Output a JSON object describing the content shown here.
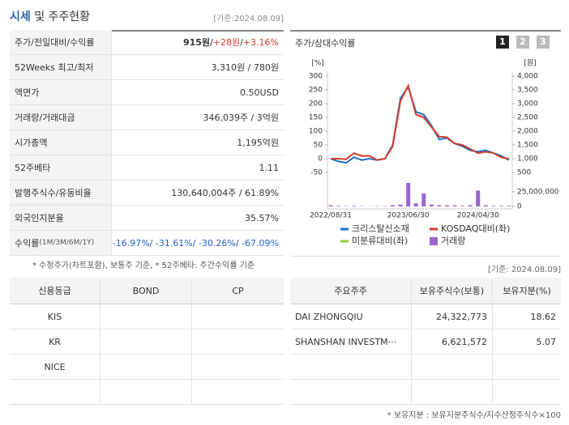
{
  "header": {
    "title_main": "시세",
    "title_rest": " 및 주주현황",
    "date": "[기준:2024.08.09]"
  },
  "summary": {
    "rows": [
      {
        "label": [
          "주가/전일대비/수익률"
        ],
        "parts": [
          "915원",
          " / ",
          "+28원",
          " / ",
          "+3.16%"
        ]
      },
      {
        "label": [
          "52Weeks 최고/최저"
        ],
        "parts": [
          "3,310원 / 780원"
        ]
      },
      {
        "label": [
          "액면가"
        ],
        "parts": [
          "0.50USD"
        ]
      },
      {
        "label": [
          "거래량/거래대금"
        ],
        "parts": [
          "346,039주 / 3억원"
        ]
      },
      {
        "label": [
          "시가총액"
        ],
        "parts": [
          "1,195억원"
        ]
      },
      {
        "label": [
          "52주베타"
        ],
        "parts": [
          "1.11"
        ]
      },
      {
        "label": [
          "발행주식수/유동비율"
        ],
        "parts": [
          "130,640,004주 / 61.89%"
        ]
      },
      {
        "label": [
          "외국인지분율"
        ],
        "parts": [
          "35.57%"
        ]
      },
      {
        "label": [
          "수익률",
          " (1M/3M/6M/1Y)"
        ],
        "parts": [
          "-16.97%/ -31.61%/ -30.26%/ -67.09%"
        ]
      }
    ],
    "note": "* 수정주가(차트포함), 보통주 기준, * 52주베타: 주간수익률 기준"
  },
  "chart_tabs": [
    "1",
    "2",
    "3"
  ],
  "chart": {
    "type": "line",
    "title": "주가/상대수익률",
    "y_unit": "[%]",
    "y2_unit": "[원]",
    "categories": [
      "2022/08/31",
      null,
      null,
      null,
      null,
      null,
      null,
      null,
      null,
      null,
      "2023/06/30",
      null,
      null,
      null,
      null,
      null,
      null,
      null,
      null,
      "2024/04/30",
      null,
      null,
      null,
      null
    ],
    "ylim": [
      -50,
      300
    ],
    "yticks": [
      300,
      250,
      200,
      150,
      100,
      50,
      0,
      -50
    ],
    "y2lim": [
      500,
      4000
    ],
    "y2ticks": [
      {
        "value": 4000,
        "label": "4,000"
      },
      {
        "value": 3500,
        "label": "3,500"
      },
      {
        "value": 3000,
        "label": "3,000"
      },
      {
        "value": 2500,
        "label": "2,500"
      },
      {
        "value": 2000,
        "label": "2,000"
      },
      {
        "value": 1500,
        "label": "1,500"
      },
      {
        "value": 1000,
        "label": "1,000"
      },
      500
    ],
    "y3lim": [
      0,
      40000000
    ],
    "y3ticks": [
      {
        "value": 25000000,
        "label": "25,000,000"
      },
      0
    ],
    "series": [
      {
        "name": "크리스탈신소재",
        "color": "#1f6fc4",
        "values": [
          0,
          -10,
          -15,
          5,
          -5,
          0,
          -5,
          0,
          50,
          220,
          260,
          170,
          160,
          120,
          70,
          75,
          55,
          45,
          30,
          25,
          30,
          20,
          10,
          -5
        ]
      },
      {
        "name": "KOSDAQ대비(좌)",
        "color": "#d03c2a",
        "values": [
          0,
          0,
          -2,
          20,
          10,
          10,
          -5,
          0,
          45,
          210,
          265,
          160,
          150,
          115,
          80,
          78,
          55,
          50,
          35,
          20,
          25,
          20,
          5,
          0
        ]
      },
      {
        "name": "미분류대비(좌)",
        "color": "#9acd32",
        "values": [
          null,
          null,
          null,
          null,
          null,
          null,
          null,
          null,
          null,
          null,
          null,
          null,
          null,
          null,
          null,
          null,
          null,
          null,
          null,
          null,
          null,
          null,
          null,
          null
        ]
      },
      {
        "name": "거래량",
        "type": "bar",
        "axis": "y3",
        "color": "#9966cc",
        "values": [
          2000000,
          1000000,
          500000,
          1000000,
          500000,
          300000,
          500000,
          500000,
          2000000,
          3000000,
          40000000,
          5000000,
          22000000,
          3000000,
          2000000,
          2000000,
          2000000,
          1000000,
          2000000,
          27000000,
          2000000,
          1000000,
          1000000,
          1000000
        ]
      }
    ]
  },
  "chart_date": "[기준: 2024.08.09]",
  "credit": {
    "headers": [
      "신용등급",
      "BOND",
      "CP"
    ],
    "rows": [
      [
        "KIS"
      ],
      [
        "KR"
      ],
      [
        "NICE"
      ]
    ]
  },
  "holders": {
    "headers": [
      "주요주주",
      "보유주식수(보통)",
      "보유지분(%)"
    ],
    "rows": [
      [
        "DAI ZHONGQIU",
        "24,322,773",
        "18.62"
      ],
      [
        "SHANSHAN INVESTM···",
        "6,621,572",
        "5.07"
      ]
    ],
    "note": "* 보유지분 : 보유지분주식수/지수산정주식수×100"
  }
}
